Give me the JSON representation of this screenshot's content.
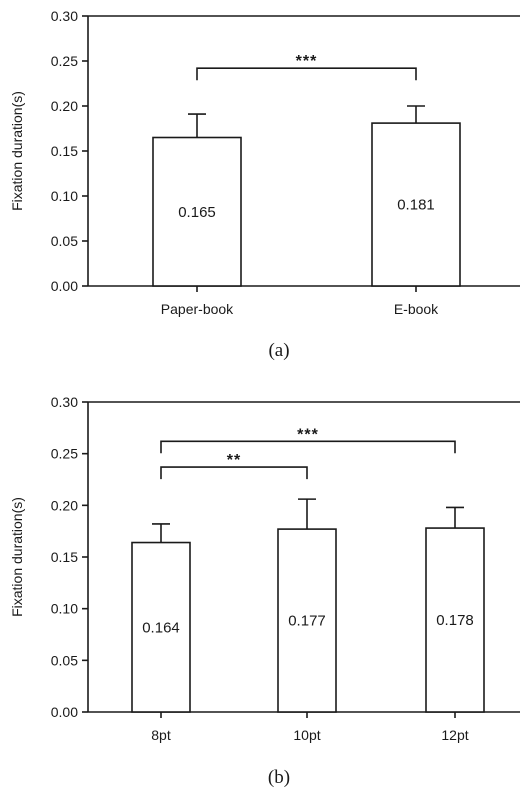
{
  "chart_data": [
    {
      "type": "bar",
      "caption": "(a)",
      "ylabel": "Fixation duration(s)",
      "xlabel": "",
      "ylim": [
        0,
        0.3
      ],
      "yticks": [
        "0.00",
        "0.05",
        "0.10",
        "0.15",
        "0.20",
        "0.25",
        "0.30"
      ],
      "categories": [
        "Paper-book",
        "E-book"
      ],
      "values": [
        0.165,
        0.181
      ],
      "value_labels": [
        "0.165",
        "0.181"
      ],
      "error_upper": [
        0.191,
        0.2
      ],
      "significance": [
        {
          "from": 0,
          "to": 1,
          "label": "***",
          "level": 0.242
        }
      ],
      "grid": false
    },
    {
      "type": "bar",
      "caption": "(b)",
      "ylabel": "Fixation duration(s)",
      "xlabel": "",
      "ylim": [
        0,
        0.3
      ],
      "yticks": [
        "0.00",
        "0.05",
        "0.10",
        "0.15",
        "0.20",
        "0.25",
        "0.30"
      ],
      "categories": [
        "8pt",
        "10pt",
        "12pt"
      ],
      "values": [
        0.164,
        0.177,
        0.178
      ],
      "value_labels": [
        "0.164",
        "0.177",
        "0.178"
      ],
      "error_upper": [
        0.182,
        0.206,
        0.198
      ],
      "significance": [
        {
          "from": 0,
          "to": 1,
          "label": "**",
          "level": 0.237
        },
        {
          "from": 0,
          "to": 2,
          "label": "***",
          "level": 0.262
        }
      ],
      "grid": false
    }
  ]
}
